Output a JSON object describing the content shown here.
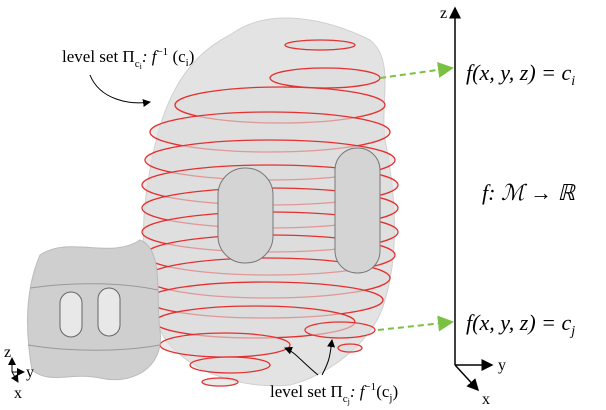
{
  "annotations": [
    {
      "parts": [
        "level set Π",
        "c",
        "i",
        ": f",
        "−1",
        " (c",
        "i",
        ")"
      ]
    },
    {
      "parts": [
        "level set Π",
        "c",
        "j",
        ": f",
        "−1",
        "(c",
        "j",
        ")"
      ]
    }
  ],
  "equations": [
    {
      "parts": [
        "f(x, y, z) = c",
        "i"
      ]
    },
    {
      "parts": [
        "f: ℳ → ℝ"
      ]
    },
    {
      "parts": [
        "f(x, y, z) = c",
        "j"
      ]
    }
  ],
  "axes": {
    "z": "z",
    "y": "y",
    "x": "x"
  },
  "thumbnail_axes": {
    "z": "z",
    "y": "y",
    "x": "x"
  }
}
